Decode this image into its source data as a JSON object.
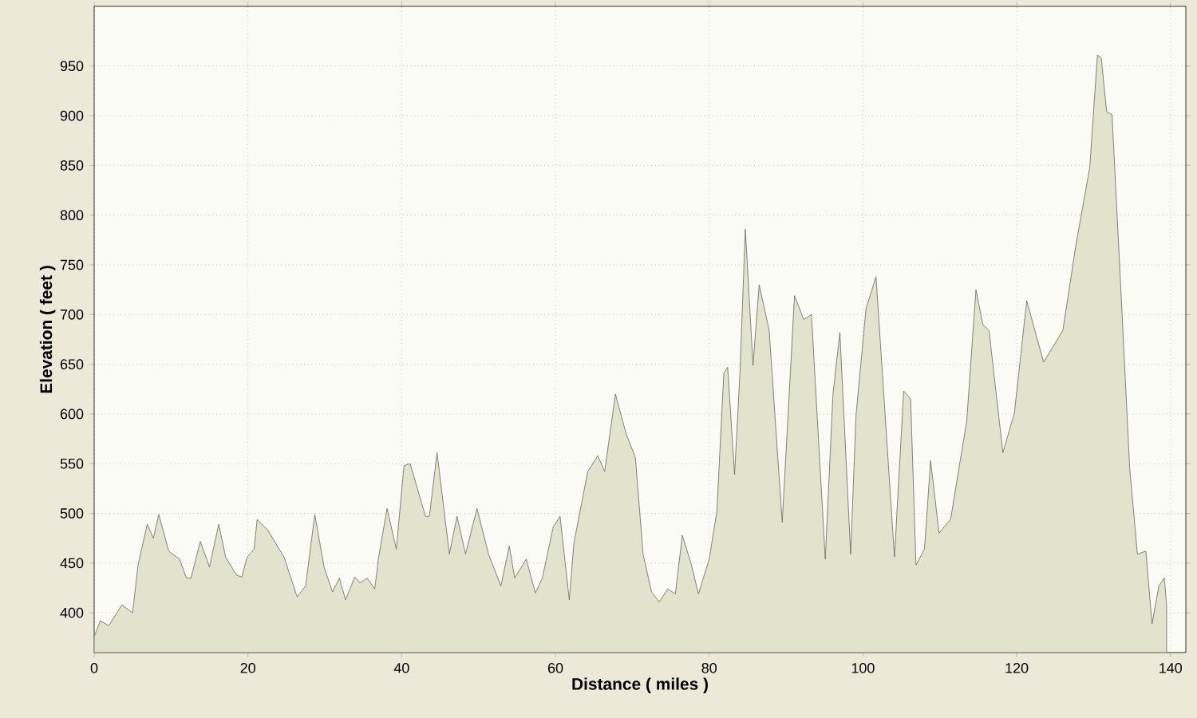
{
  "chart_data": {
    "type": "area",
    "xlabel": "Distance ( miles )",
    "ylabel": "Elevation ( feet )",
    "xlim": [
      0,
      142
    ],
    "ylim": [
      360,
      1010
    ],
    "xticks": [
      0,
      20,
      40,
      60,
      80,
      100,
      120,
      140
    ],
    "yticks": [
      400,
      450,
      500,
      550,
      600,
      650,
      700,
      750,
      800,
      850,
      900,
      950
    ],
    "grid": true,
    "series": [
      {
        "color": "#e2e3cc",
        "x": [
          0,
          0.8,
          1.9,
          3.6,
          5.0,
          5.7,
          6.9,
          7.7,
          8.4,
          9.7,
          11.1,
          12.0,
          12.6,
          13.8,
          15.0,
          16.2,
          17.1,
          18.5,
          19.2,
          19.9,
          20.8,
          21.2,
          22.6,
          24.7,
          26.4,
          27.5,
          28.7,
          29.9,
          31.0,
          31.9,
          32.7,
          33.9,
          34.6,
          35.5,
          36.5,
          37.0,
          38.1,
          39.3,
          40.3,
          41.1,
          43.1,
          43.6,
          44.6,
          46.2,
          47.2,
          48.3,
          49.8,
          51.3,
          52.9,
          54.0,
          54.7,
          56.2,
          57.4,
          58.3,
          59.7,
          60.6,
          61.8,
          62.4,
          64.2,
          65.5,
          66.4,
          67.8,
          69.2,
          70.4,
          71.4,
          72.5,
          73.5,
          74.6,
          75.6,
          76.5,
          77.7,
          78.6,
          80.0,
          81.0,
          81.9,
          82.4,
          83.3,
          84.0,
          84.7,
          85.7,
          86.5,
          87.8,
          89.5,
          91.1,
          92.3,
          93.3,
          95.1,
          96.1,
          97.0,
          98.4,
          99.1,
          100.4,
          101.7,
          104.1,
          105.3,
          106.2,
          106.9,
          108.0,
          108.8,
          109.9,
          111.4,
          113.5,
          114.7,
          115.6,
          116.4,
          118.2,
          119.7,
          121.3,
          123.5,
          126.0,
          127.7,
          129.5,
          130.5,
          131.0,
          131.7,
          132.4,
          133.6,
          134.7,
          135.7,
          136.8,
          137.6,
          138.5,
          139.2,
          139.5
        ],
        "values": [
          376,
          392,
          387,
          408,
          400,
          448,
          489,
          475,
          499,
          462,
          454,
          435,
          435,
          472,
          446,
          489,
          456,
          438,
          436,
          456,
          464,
          494,
          483,
          456,
          416,
          427,
          499,
          446,
          421,
          435,
          413,
          436,
          430,
          435,
          424,
          456,
          505,
          464,
          548,
          550,
          497,
          497,
          561,
          459,
          497,
          459,
          505,
          459,
          427,
          467,
          435,
          454,
          420,
          435,
          486,
          497,
          413,
          470,
          542,
          558,
          542,
          620,
          580,
          556,
          459,
          421,
          411,
          424,
          419,
          478,
          448,
          419,
          454,
          502,
          641,
          647,
          539,
          641,
          786,
          649,
          730,
          684,
          491,
          719,
          695,
          700,
          454,
          620,
          682,
          459,
          599,
          706,
          738,
          456,
          623,
          615,
          448,
          464,
          553,
          480,
          494,
          593,
          725,
          690,
          684,
          561,
          601,
          714,
          652,
          684,
          770,
          848,
          961,
          958,
          904,
          901,
          717,
          545,
          459,
          462,
          389,
          427,
          435,
          408
        ]
      }
    ]
  }
}
